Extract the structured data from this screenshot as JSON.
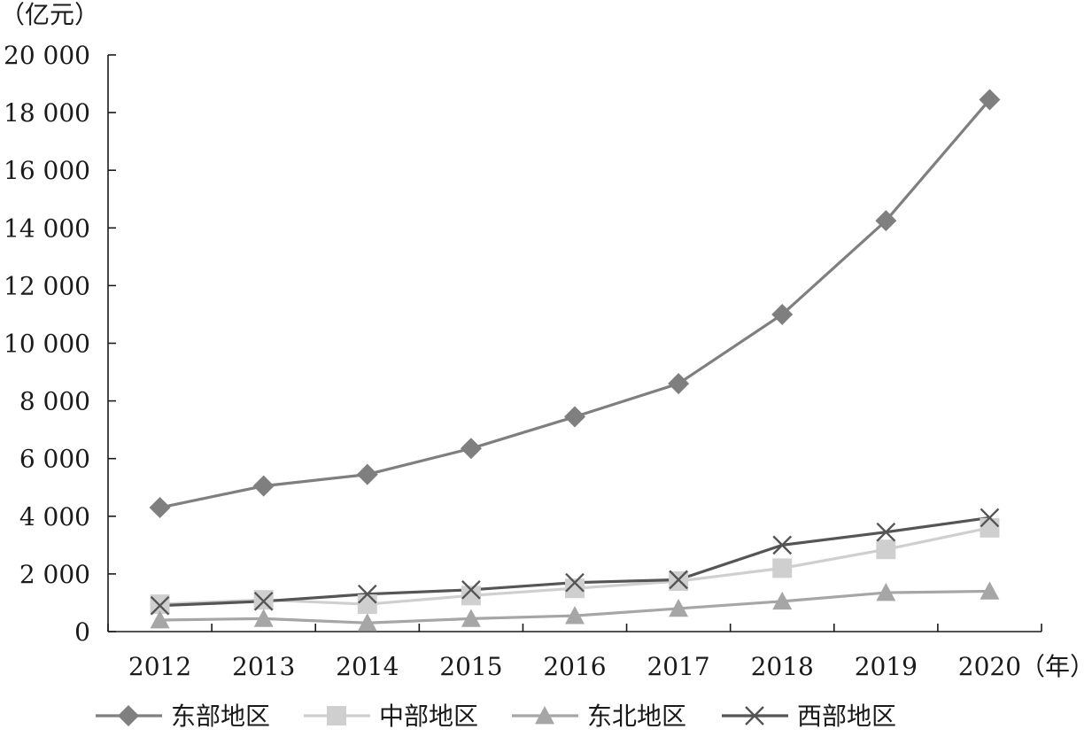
{
  "chart_data": {
    "type": "line",
    "y_unit_label": "（亿元）",
    "x_unit_label": "（年）",
    "categories": [
      "2012",
      "2013",
      "2014",
      "2015",
      "2016",
      "2017",
      "2018",
      "2019",
      "2020"
    ],
    "ylim": [
      0,
      20000
    ],
    "yticks": [
      0,
      2000,
      4000,
      6000,
      8000,
      10000,
      12000,
      14000,
      16000,
      18000,
      20000
    ],
    "ytick_labels": [
      "0",
      "2 000",
      "4 000",
      "6 000",
      "8 000",
      "10 000",
      "12 000",
      "14 000",
      "16 000",
      "18 000",
      "20 000"
    ],
    "grid": false,
    "legend_position": "bottom",
    "series": [
      {
        "name": "东部地区",
        "marker": "diamond",
        "color": "#7f7f7f",
        "values": [
          4300,
          5050,
          5450,
          6350,
          7450,
          8600,
          11000,
          14250,
          18450
        ]
      },
      {
        "name": "中部地区",
        "marker": "square",
        "color": "#cfcfcf",
        "values": [
          950,
          1100,
          950,
          1250,
          1500,
          1750,
          2200,
          2850,
          3600
        ]
      },
      {
        "name": "东北地区",
        "marker": "triangle",
        "color": "#a6a6a6",
        "values": [
          400,
          450,
          300,
          450,
          550,
          800,
          1050,
          1350,
          1400
        ]
      },
      {
        "name": "西部地区",
        "marker": "x",
        "color": "#555555",
        "values": [
          900,
          1050,
          1300,
          1450,
          1700,
          1800,
          3000,
          3450,
          3950
        ]
      }
    ]
  }
}
